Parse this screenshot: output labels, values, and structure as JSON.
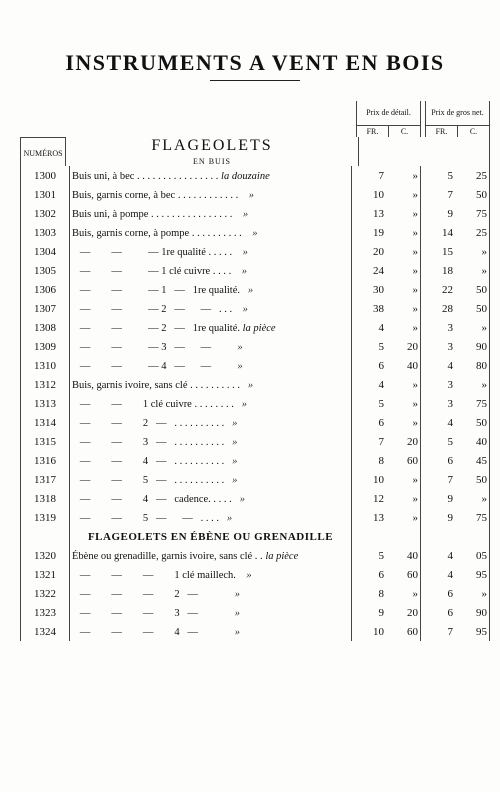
{
  "title": "INSTRUMENTS A VENT EN BOIS",
  "section1": "FLAGEOLETS",
  "section1_sub": "EN BUIS",
  "section2": "FLAGEOLETS EN ÉBÈNE OU GRENADILLE",
  "col_numeros": "NUMÉROS",
  "price_detail_label": "Prix de détail.",
  "price_gros_label": "Prix de gros net.",
  "unit_fr": "FR.",
  "unit_c": "C.",
  "rows1": [
    {
      "n": "1300",
      "d": "Buis uni, à bec . . . . . . . . . . . . . . . . ",
      "u": "la douzaine",
      "pf": "7",
      "pc": "»",
      "gf": "5",
      "gc": "25"
    },
    {
      "n": "1301",
      "d": "Buis, garnis corne, à bec . . . . . . . . . . . .    ",
      "u": "»",
      "pf": "10",
      "pc": "»",
      "gf": "7",
      "gc": "50"
    },
    {
      "n": "1302",
      "d": "Buis uni, à pompe . . . . . . . . . . . . . . . .    ",
      "u": "»",
      "pf": "13",
      "pc": "»",
      "gf": "9",
      "gc": "75"
    },
    {
      "n": "1303",
      "d": "Buis, garnis corne, à pompe . . . . . . . . . .    ",
      "u": "»",
      "pf": "19",
      "pc": "»",
      "gf": "14",
      "gc": "25"
    },
    {
      "n": "1304",
      "d": "   —        —          — 1re qualité . . . . .    ",
      "u": "»",
      "pf": "20",
      "pc": "»",
      "gf": "15",
      "gc": "»"
    },
    {
      "n": "1305",
      "d": "   —        —          — 1 clé cuivre . . . .    ",
      "u": "»",
      "pf": "24",
      "pc": "»",
      "gf": "18",
      "gc": "»"
    },
    {
      "n": "1306",
      "d": "   —        —          — 1   —   1re qualité.   ",
      "u": "»",
      "pf": "30",
      "pc": "»",
      "gf": "22",
      "gc": "50"
    },
    {
      "n": "1307",
      "d": "   —        —          — 2   —      —   . . .    ",
      "u": "»",
      "pf": "38",
      "pc": "»",
      "gf": "28",
      "gc": "50"
    },
    {
      "n": "1308",
      "d": "   —        —          — 2   —   1re qualité. ",
      "u": "la pièce",
      "pf": "4",
      "pc": "»",
      "gf": "3",
      "gc": "»"
    },
    {
      "n": "1309",
      "d": "   —        —          — 3   —      —          ",
      "u": "»",
      "pf": "5",
      "pc": "20",
      "gf": "3",
      "gc": "90"
    },
    {
      "n": "1310",
      "d": "   —        —          — 4   —      —          ",
      "u": "»",
      "pf": "6",
      "pc": "40",
      "gf": "4",
      "gc": "80"
    },
    {
      "n": "1312",
      "d": "Buis, garnis ivoire, sans clé . . . . . . . . . .   ",
      "u": "»",
      "pf": "4",
      "pc": "»",
      "gf": "3",
      "gc": "»"
    },
    {
      "n": "1313",
      "d": "   —        —        1 clé cuivre . . . . . . . .   ",
      "u": "»",
      "pf": "5",
      "pc": "»",
      "gf": "3",
      "gc": "75"
    },
    {
      "n": "1314",
      "d": "   —        —        2   —   . . . . . . . . . .   ",
      "u": "»",
      "pf": "6",
      "pc": "»",
      "gf": "4",
      "gc": "50"
    },
    {
      "n": "1315",
      "d": "   —        —        3   —   . . . . . . . . . .   ",
      "u": "»",
      "pf": "7",
      "pc": "20",
      "gf": "5",
      "gc": "40"
    },
    {
      "n": "1316",
      "d": "   —        —        4   —   . . . . . . . . . .   ",
      "u": "»",
      "pf": "8",
      "pc": "60",
      "gf": "6",
      "gc": "45"
    },
    {
      "n": "1317",
      "d": "   —        —        5   —   . . . . . . . . . .   ",
      "u": "»",
      "pf": "10",
      "pc": "»",
      "gf": "7",
      "gc": "50"
    },
    {
      "n": "1318",
      "d": "   —        —        4   —   cadence. . . . .   ",
      "u": "»",
      "pf": "12",
      "pc": "»",
      "gf": "9",
      "gc": "»"
    },
    {
      "n": "1319",
      "d": "   —        —        5   —      —   . . . .   ",
      "u": "»",
      "pf": "13",
      "pc": "»",
      "gf": "9",
      "gc": "75"
    }
  ],
  "rows2": [
    {
      "n": "1320",
      "d": "Ébène ou grenadille, garnis ivoire, sans clé . . ",
      "u": "la pièce",
      "pf": "5",
      "pc": "40",
      "gf": "4",
      "gc": "05"
    },
    {
      "n": "1321",
      "d": "   —        —        —        1 clé maillech.    ",
      "u": "»",
      "pf": "6",
      "pc": "60",
      "gf": "4",
      "gc": "95"
    },
    {
      "n": "1322",
      "d": "   —        —        —        2   —              ",
      "u": "»",
      "pf": "8",
      "pc": "»",
      "gf": "6",
      "gc": "»"
    },
    {
      "n": "1323",
      "d": "   —        —        —        3   —              ",
      "u": "»",
      "pf": "9",
      "pc": "20",
      "gf": "6",
      "gc": "90"
    },
    {
      "n": "1324",
      "d": "   —        —        —        4   —              ",
      "u": "»",
      "pf": "10",
      "pc": "60",
      "gf": "7",
      "gc": "95"
    }
  ]
}
